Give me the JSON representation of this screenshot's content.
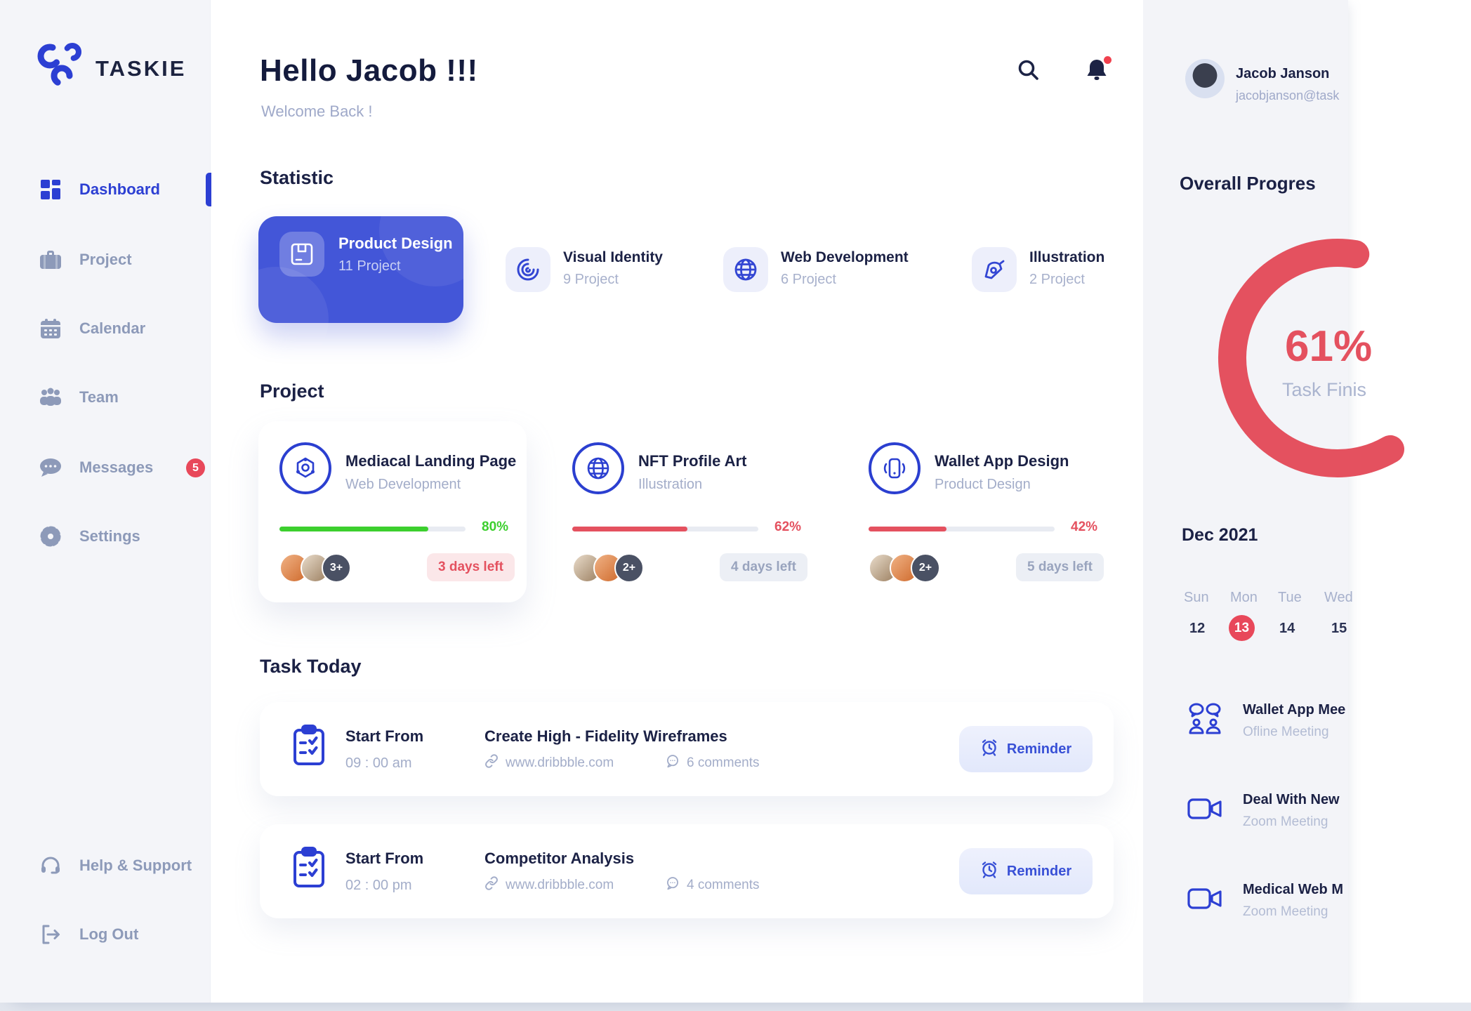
{
  "app": {
    "name": "TASKIE"
  },
  "sidebar": {
    "items": [
      {
        "label": "Dashboard",
        "icon": "dashboard-icon",
        "active": true
      },
      {
        "label": "Project",
        "icon": "briefcase-icon"
      },
      {
        "label": "Calendar",
        "icon": "calendar-icon"
      },
      {
        "label": "Team",
        "icon": "team-icon"
      },
      {
        "label": "Messages",
        "icon": "chat-icon",
        "badge": "5"
      },
      {
        "label": "Settings",
        "icon": "gear-icon"
      }
    ],
    "footer_items": [
      {
        "label": "Help & Support",
        "icon": "headset-icon"
      },
      {
        "label": "Log Out",
        "icon": "logout-icon"
      }
    ]
  },
  "header": {
    "greeting": "Hello Jacob !!!",
    "subtitle": "Welcome Back !"
  },
  "user": {
    "name": "Jacob Janson",
    "email": "jacobjanson@task"
  },
  "statistic": {
    "title": "Statistic",
    "featured": {
      "title": "Product Design",
      "subtitle": "11 Project",
      "icon": "package-icon"
    },
    "items": [
      {
        "title": "Visual Identity",
        "subtitle": "9 Project",
        "icon": "swirl-icon"
      },
      {
        "title": "Web Development",
        "subtitle": "6 Project",
        "icon": "globe-icon"
      },
      {
        "title": "Illustration",
        "subtitle": "2 Project",
        "icon": "pen-nib-icon"
      }
    ]
  },
  "projects": {
    "title": "Project",
    "cards": [
      {
        "title": "Mediacal Landing Page",
        "category": "Web Development",
        "icon": "hexagon-network-icon",
        "percent": 80,
        "percent_label": "80%",
        "status": "green",
        "extra_members": "3+",
        "days_left": "3 days left"
      },
      {
        "title": "NFT Profile Art",
        "category": "Illustration",
        "icon": "globe-icon",
        "percent": 62,
        "percent_label": "62%",
        "status": "red",
        "extra_members": "2+",
        "days_left": "4 days left"
      },
      {
        "title": "Wallet App Design",
        "category": "Product Design",
        "icon": "mobile-wallet-icon",
        "percent": 42,
        "percent_label": "42%",
        "status": "red",
        "extra_members": "2+",
        "days_left": "5 days left"
      }
    ]
  },
  "tasks": {
    "title": "Task Today",
    "rows": [
      {
        "start_label": "Start From",
        "time": "09 : 00 am",
        "title": "Create High - Fidelity Wireframes",
        "link": "www.dribbble.com",
        "comments": "6 comments",
        "reminder_label": "Reminder"
      },
      {
        "start_label": "Start From",
        "time": "02 : 00 pm",
        "title": "Competitor Analysis",
        "link": "www.dribbble.com",
        "comments": "4 comments",
        "reminder_label": "Reminder"
      }
    ]
  },
  "right_panel": {
    "overall": {
      "title": "Overall Progres",
      "value": 61,
      "percent_label": "61%",
      "caption": "Task Finis"
    },
    "calendar": {
      "month": "Dec 2021",
      "weekdays": [
        "Sun",
        "Mon",
        "Tue",
        "Wed"
      ],
      "dates": [
        "12",
        "13",
        "14",
        "15"
      ],
      "active_date": "13"
    },
    "meetings": [
      {
        "title": "Wallet App Mee",
        "type": "Ofline Meeting",
        "icon": "people-chat-icon"
      },
      {
        "title": "Deal With New",
        "type": "Zoom Meeting",
        "icon": "video-camera-icon"
      },
      {
        "title": "Medical Web M",
        "type": "Zoom Meeting",
        "icon": "video-camera-icon"
      }
    ]
  },
  "colors": {
    "accent_blue": "#3346d3",
    "card_blue": "#4356d8",
    "red": "#e4515f",
    "green": "#3ccf2e",
    "navy": "#1b2145",
    "slate": "#9aa5c4",
    "badge_red": "#e8485a"
  }
}
